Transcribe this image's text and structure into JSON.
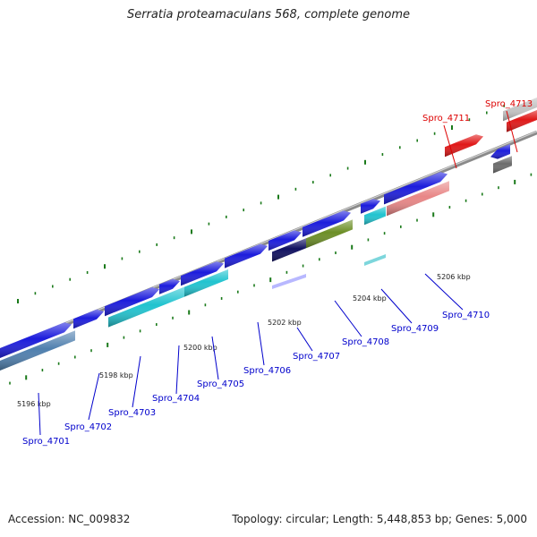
{
  "title": "Serratia proteamaculans 568, complete genome",
  "footer": {
    "accession": "Accession: NC_009832",
    "summary": "Topology: circular; Length: 5,448,853 bp; Genes: 5,000"
  },
  "colors": {
    "strand_blue": "#1c1cdc",
    "cyan": "#21c3cf",
    "steelblue": "#4f7fae",
    "red": "#e01818",
    "pink": "#e88686",
    "olive": "#6c8e26",
    "silver": "#c4c4c4",
    "gray": "#6c6c6c",
    "navy_dark": "#101060",
    "backbone": "#8a8a8a",
    "tick_green": "#1a7a1a",
    "label_blue": "#0000cc",
    "label_red": "#dd0000"
  },
  "kbp_labels": [
    "5196 kbp",
    "5198 kbp",
    "5200 kbp",
    "5202 kbp",
    "5204 kbp",
    "5206 kbp"
  ],
  "genes": [
    {
      "id": "Spro_4701",
      "color": "label_blue"
    },
    {
      "id": "Spro_4702",
      "color": "label_blue"
    },
    {
      "id": "Spro_4703",
      "color": "label_blue"
    },
    {
      "id": "Spro_4704",
      "color": "label_blue"
    },
    {
      "id": "Spro_4705",
      "color": "label_blue"
    },
    {
      "id": "Spro_4706",
      "color": "label_blue"
    },
    {
      "id": "Spro_4707",
      "color": "label_blue"
    },
    {
      "id": "Spro_4708",
      "color": "label_blue"
    },
    {
      "id": "Spro_4709",
      "color": "label_blue"
    },
    {
      "id": "Spro_4710",
      "color": "label_blue"
    },
    {
      "id": "Spro_4711",
      "color": "label_red"
    },
    {
      "id": "Spro_4713",
      "color": "label_red"
    }
  ]
}
